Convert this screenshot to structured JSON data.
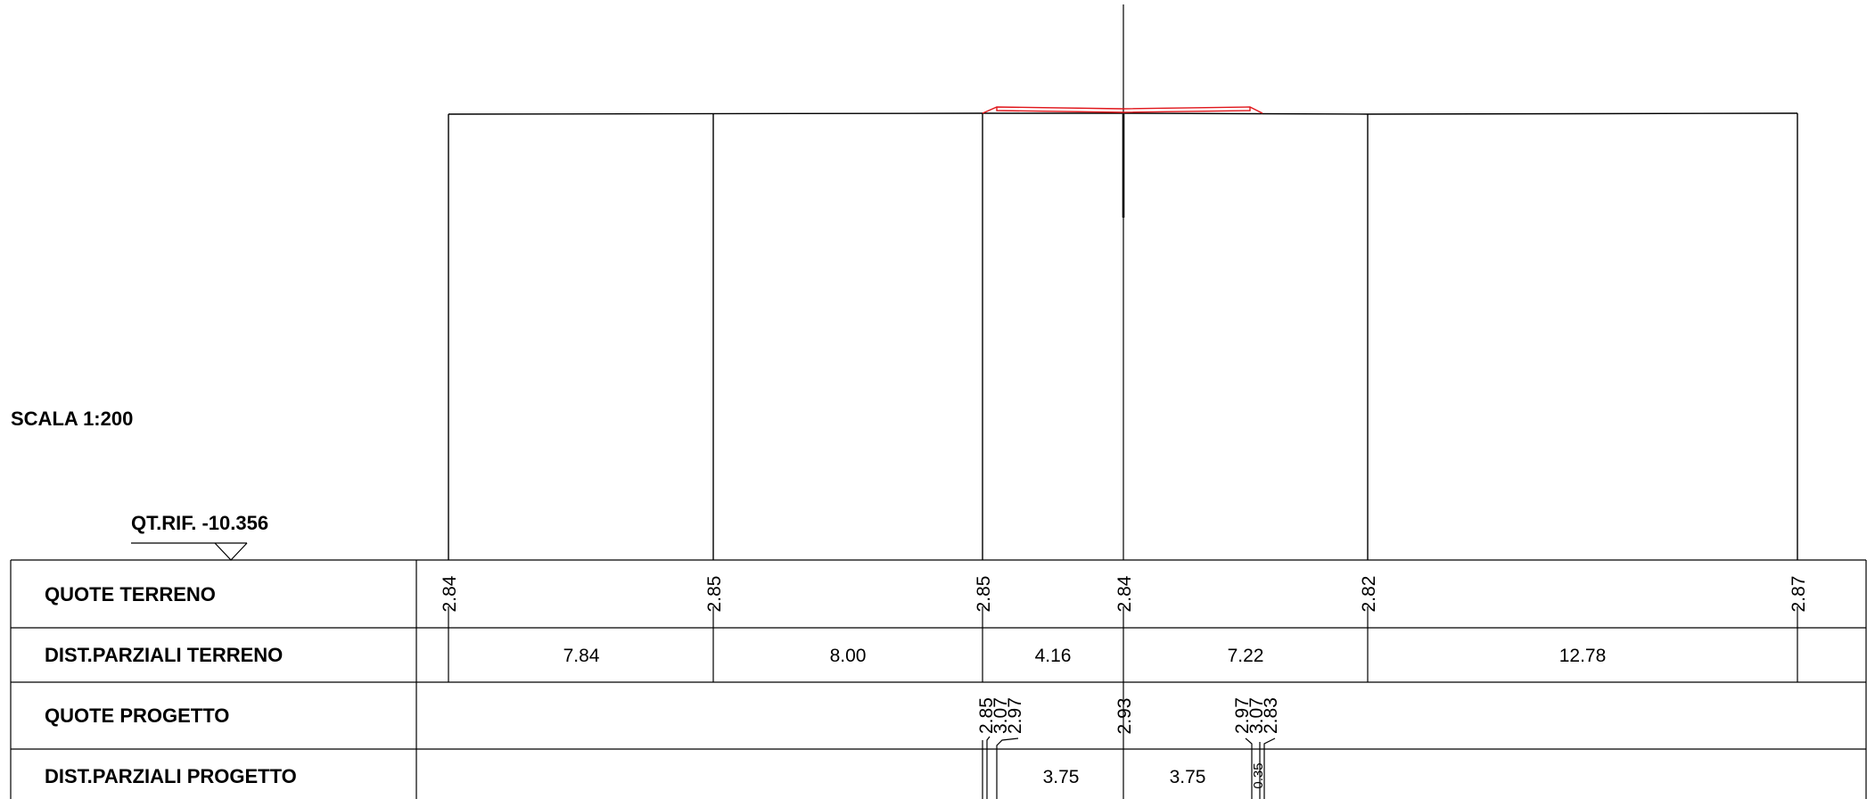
{
  "drawing": {
    "scale_label": "SCALA 1:200",
    "reference_label": "QT.RIF. -10.356",
    "colors": {
      "lines": "#000000",
      "project_profile": "#e0161b",
      "background": "#ffffff"
    }
  },
  "table": {
    "rows": [
      {
        "id": "quote-terreno",
        "label": "QUOTE TERRENO"
      },
      {
        "id": "dist-parziali-terreno",
        "label": "DIST.PARZIALI TERRENO"
      },
      {
        "id": "quote-progetto",
        "label": "QUOTE PROGETTO"
      },
      {
        "id": "dist-parziali-progetto",
        "label": "DIST.PARZIALI PROGETTO"
      }
    ]
  },
  "terrain": {
    "elevations": [
      "2.84",
      "2.85",
      "2.85",
      "2.84",
      "2.82",
      "2.87"
    ],
    "partial_distances": [
      "7.84",
      "8.00",
      "4.16",
      "7.22",
      "12.78"
    ]
  },
  "project": {
    "left_group": [
      "2.85",
      "3.07",
      "2.97"
    ],
    "axis_elevation": "2.93",
    "right_group": [
      "2.97",
      "3.07",
      "2.83"
    ],
    "partial_distances": [
      "3.75",
      "3.75"
    ],
    "small_distance": "0.35"
  }
}
